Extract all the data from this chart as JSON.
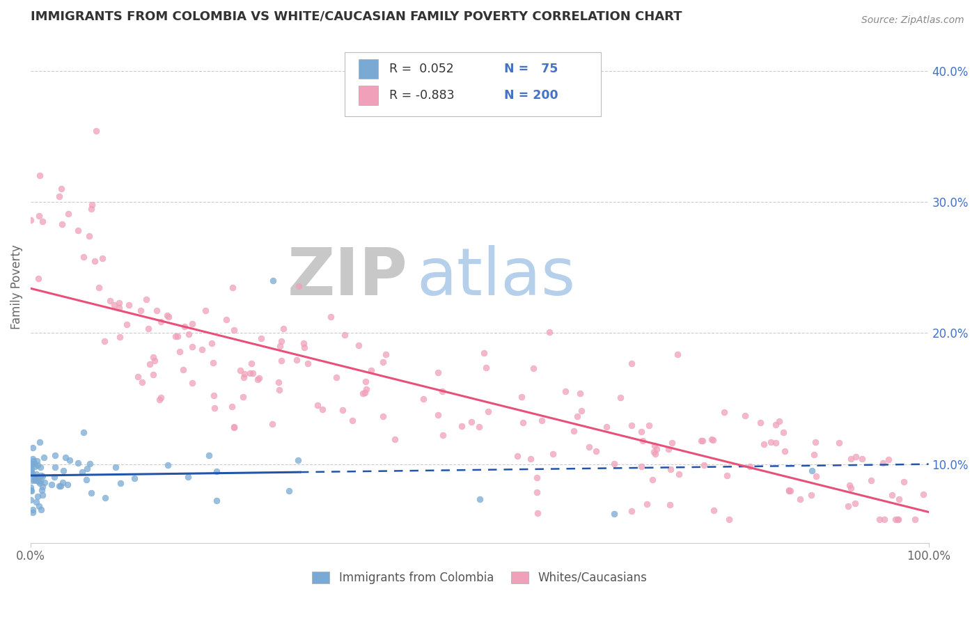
{
  "title": "IMMIGRANTS FROM COLOMBIA VS WHITE/CAUCASIAN FAMILY POVERTY CORRELATION CHART",
  "source": "Source: ZipAtlas.com",
  "ylabel": "Family Poverty",
  "watermark_zip": "ZIP",
  "watermark_atlas": "atlas",
  "xlim": [
    0,
    1
  ],
  "ylim": [
    0.04,
    0.43
  ],
  "right_yticks": [
    0.1,
    0.2,
    0.3,
    0.4
  ],
  "right_yticklabels": [
    "10.0%",
    "20.0%",
    "30.0%",
    "40.0%"
  ],
  "legend_r1": "R =  0.052",
  "legend_n1": "N =   75",
  "legend_r2": "R = -0.883",
  "legend_n2": "N = 200",
  "blue_color": "#7aaad4",
  "pink_color": "#f0a0b8",
  "blue_line_color": "#2255aa",
  "pink_line_color": "#e8507a",
  "title_color": "#333333",
  "axis_label_color": "#4472c4",
  "tick_color": "#666666",
  "grid_color": "#cccccc",
  "background_color": "#ffffff",
  "n_blue": 75,
  "n_pink": 200,
  "blue_trend_x_solid_end": 0.3,
  "blue_trend_start_y": 0.09,
  "blue_trend_end_y": 0.133,
  "pink_trend_start_y": 0.21,
  "pink_trend_end_y": 0.073
}
